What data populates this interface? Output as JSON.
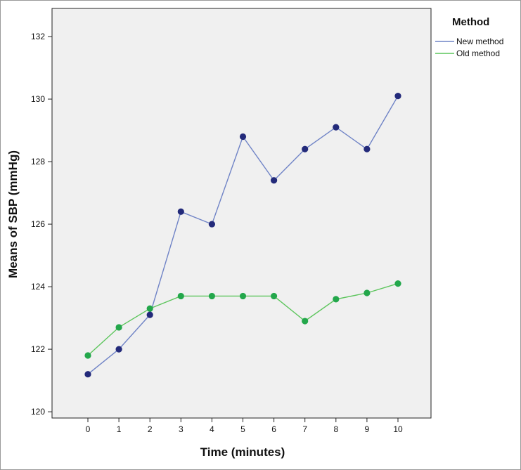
{
  "chart_data": {
    "type": "line",
    "xlabel": "Time (minutes)",
    "ylabel": "Means of SBP (mmHg)",
    "x": [
      0,
      1,
      2,
      3,
      4,
      5,
      6,
      7,
      8,
      9,
      10
    ],
    "xticks": [
      "0",
      "1",
      "2",
      "3",
      "4",
      "5",
      "6",
      "7",
      "8",
      "9",
      "10"
    ],
    "yticks": [
      120,
      122,
      124,
      126,
      128,
      130,
      132
    ],
    "ylim": [
      119.8,
      132.9
    ],
    "grid": false,
    "legend": {
      "title": "Method",
      "placement": "right"
    },
    "series": [
      {
        "name": "New method",
        "color": "#6f83c6",
        "marker_color": "#232a7a",
        "values": [
          121.2,
          122.0,
          123.1,
          126.4,
          126.0,
          128.8,
          127.4,
          128.4,
          129.1,
          128.4,
          130.1
        ]
      },
      {
        "name": "Old method",
        "color": "#5cc55c",
        "marker_color": "#23a74b",
        "values": [
          121.8,
          122.7,
          123.3,
          123.7,
          123.7,
          123.7,
          123.7,
          122.9,
          123.6,
          123.8,
          124.1
        ]
      }
    ]
  }
}
